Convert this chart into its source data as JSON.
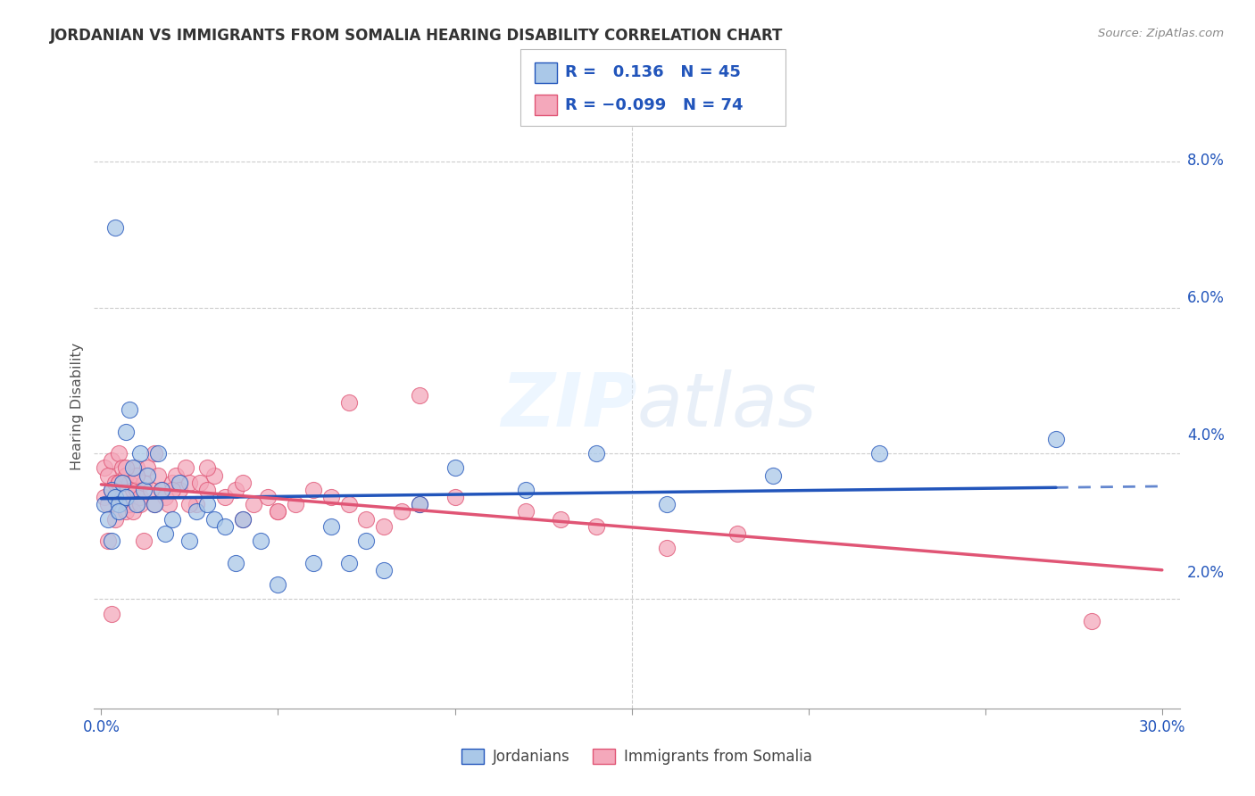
{
  "title": "JORDANIAN VS IMMIGRANTS FROM SOMALIA HEARING DISABILITY CORRELATION CHART",
  "source": "Source: ZipAtlas.com",
  "ylabel": "Hearing Disability",
  "ylim": [
    0.005,
    0.088
  ],
  "xlim": [
    -0.002,
    0.305
  ],
  "yticks": [
    0.0,
    0.02,
    0.04,
    0.06,
    0.08
  ],
  "ytick_labels": [
    "",
    "2.0%",
    "4.0%",
    "6.0%",
    "8.0%"
  ],
  "xtick_positions": [
    0.0,
    0.05,
    0.1,
    0.15,
    0.2,
    0.25,
    0.3
  ],
  "xtick_labels": [
    "0.0%",
    "",
    "",
    "",
    "",
    "",
    "30.0%"
  ],
  "r_jordanian": "0.136",
  "n_jordanian": "45",
  "r_somalia": "-0.099",
  "n_somalia": "74",
  "color_jordanian": "#aac8e8",
  "color_somalia": "#f4a8bb",
  "line_color_jordanian": "#2255bb",
  "line_color_somalia": "#e05575",
  "jordanian_x": [
    0.001,
    0.002,
    0.003,
    0.003,
    0.004,
    0.005,
    0.005,
    0.006,
    0.007,
    0.007,
    0.008,
    0.009,
    0.01,
    0.011,
    0.012,
    0.013,
    0.015,
    0.016,
    0.017,
    0.018,
    0.02,
    0.022,
    0.025,
    0.027,
    0.03,
    0.032,
    0.035,
    0.038,
    0.04,
    0.045,
    0.05,
    0.06,
    0.065,
    0.07,
    0.075,
    0.08,
    0.09,
    0.1,
    0.12,
    0.14,
    0.16,
    0.19,
    0.22,
    0.27,
    0.004
  ],
  "jordanian_y": [
    0.033,
    0.031,
    0.035,
    0.028,
    0.034,
    0.033,
    0.032,
    0.036,
    0.034,
    0.043,
    0.046,
    0.038,
    0.033,
    0.04,
    0.035,
    0.037,
    0.033,
    0.04,
    0.035,
    0.029,
    0.031,
    0.036,
    0.028,
    0.032,
    0.033,
    0.031,
    0.03,
    0.025,
    0.031,
    0.028,
    0.022,
    0.025,
    0.03,
    0.025,
    0.028,
    0.024,
    0.033,
    0.038,
    0.035,
    0.04,
    0.033,
    0.037,
    0.04,
    0.042,
    0.071
  ],
  "somalia_x": [
    0.001,
    0.001,
    0.002,
    0.002,
    0.003,
    0.003,
    0.004,
    0.004,
    0.005,
    0.005,
    0.006,
    0.006,
    0.007,
    0.007,
    0.008,
    0.008,
    0.009,
    0.009,
    0.01,
    0.01,
    0.011,
    0.011,
    0.012,
    0.013,
    0.014,
    0.015,
    0.016,
    0.017,
    0.018,
    0.019,
    0.02,
    0.021,
    0.022,
    0.024,
    0.025,
    0.027,
    0.028,
    0.03,
    0.032,
    0.035,
    0.038,
    0.04,
    0.043,
    0.047,
    0.05,
    0.055,
    0.06,
    0.065,
    0.07,
    0.075,
    0.08,
    0.085,
    0.09,
    0.1,
    0.12,
    0.13,
    0.14,
    0.16,
    0.18,
    0.09,
    0.07,
    0.05,
    0.04,
    0.03,
    0.025,
    0.02,
    0.015,
    0.012,
    0.01,
    0.007,
    0.005,
    0.003,
    0.002,
    0.28
  ],
  "somalia_y": [
    0.034,
    0.038,
    0.033,
    0.037,
    0.035,
    0.039,
    0.031,
    0.036,
    0.036,
    0.04,
    0.034,
    0.038,
    0.032,
    0.037,
    0.033,
    0.036,
    0.032,
    0.035,
    0.035,
    0.038,
    0.034,
    0.033,
    0.036,
    0.038,
    0.035,
    0.04,
    0.037,
    0.035,
    0.034,
    0.033,
    0.036,
    0.037,
    0.035,
    0.038,
    0.036,
    0.033,
    0.036,
    0.035,
    0.037,
    0.034,
    0.035,
    0.031,
    0.033,
    0.034,
    0.032,
    0.033,
    0.035,
    0.034,
    0.033,
    0.031,
    0.03,
    0.032,
    0.033,
    0.034,
    0.032,
    0.031,
    0.03,
    0.027,
    0.029,
    0.048,
    0.047,
    0.032,
    0.036,
    0.038,
    0.033,
    0.035,
    0.033,
    0.028,
    0.037,
    0.038,
    0.036,
    0.018,
    0.028,
    0.017
  ]
}
